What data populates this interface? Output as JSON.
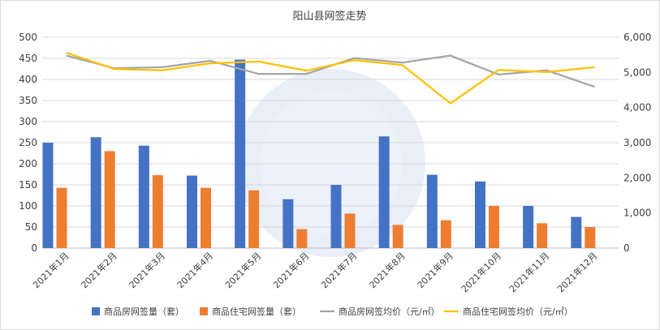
{
  "chart_data": {
    "type": "bar",
    "title": "阳山县网签走势",
    "categories": [
      "2021年1月",
      "2021年2月",
      "2021年3月",
      "2021年4月",
      "2021年5月",
      "2021年6月",
      "2021年7月",
      "2021年8月",
      "2021年9月",
      "2021年10月",
      "2021年11月",
      "2021年12月"
    ],
    "y_left": {
      "ticks": [
        0,
        50,
        100,
        150,
        200,
        250,
        300,
        350,
        400,
        450,
        500
      ],
      "tick_labels": [
        "0",
        "50",
        "100",
        "150",
        "200",
        "250",
        "300",
        "350",
        "400",
        "450",
        "500"
      ],
      "range": [
        0,
        500
      ]
    },
    "y_right": {
      "ticks": [
        0,
        1000,
        2000,
        3000,
        4000,
        5000,
        6000
      ],
      "tick_labels": [
        "0",
        "1,000",
        "2,000",
        "3,000",
        "4,000",
        "5,000",
        "6,000"
      ],
      "range": [
        0,
        6000
      ]
    },
    "grid": true,
    "legend_position": "bottom",
    "series": [
      {
        "name": "商品房网签量（套）",
        "kind": "bar",
        "axis": "left",
        "color": "#4472C4",
        "values": [
          250,
          263,
          243,
          172,
          447,
          116,
          150,
          265,
          174,
          158,
          100,
          74
        ]
      },
      {
        "name": "商品住宅网签量（套）",
        "kind": "bar",
        "axis": "left",
        "color": "#ED7D31",
        "values": [
          143,
          230,
          173,
          143,
          137,
          45,
          82,
          55,
          66,
          100,
          59,
          50
        ]
      },
      {
        "name": "商品房网签均价（元/㎡）",
        "kind": "line",
        "axis": "right",
        "color": "#A5A5A5",
        "values": [
          5480,
          5120,
          5150,
          5330,
          4960,
          4960,
          5410,
          5280,
          5480,
          4940,
          5060,
          4590
        ]
      },
      {
        "name": "商品住宅网签均价（元/㎡）",
        "kind": "line",
        "axis": "right",
        "color": "#FFC000",
        "values": [
          5560,
          5100,
          5060,
          5260,
          5310,
          5050,
          5350,
          5210,
          4120,
          5070,
          5010,
          5150
        ]
      }
    ]
  }
}
